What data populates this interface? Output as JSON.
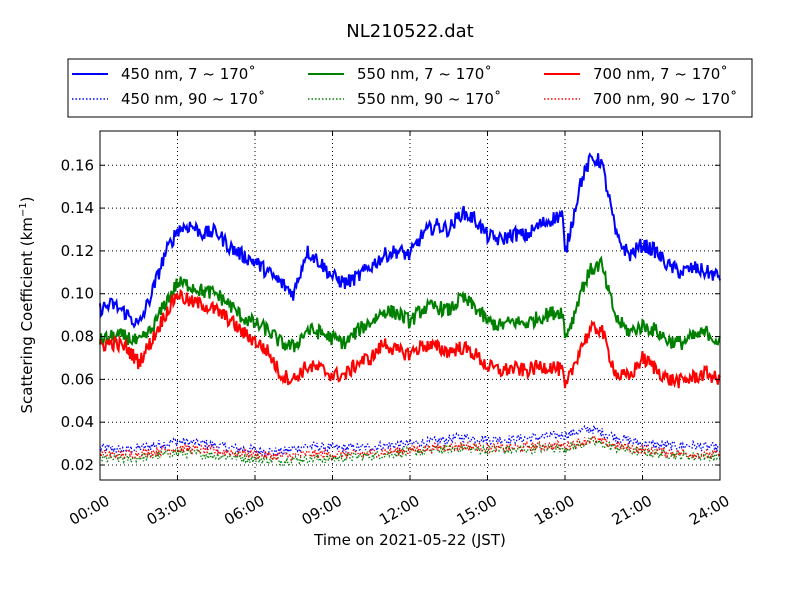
{
  "chart_data": {
    "type": "line",
    "title": "NL210522.dat",
    "xlabel": "Time on 2021-05-22 (JST)",
    "ylabel_main": "Scattering Coefficient (km",
    "ylabel_sup": "−1",
    "ylabel_close": ")",
    "xlim": [
      0,
      24
    ],
    "ylim": [
      0.013,
      0.176
    ],
    "x_ticks": [
      0,
      3,
      6,
      9,
      12,
      15,
      18,
      21,
      24
    ],
    "x_tick_labels": [
      "00:00",
      "03:00",
      "06:00",
      "09:00",
      "12:00",
      "15:00",
      "18:00",
      "21:00",
      "24:00"
    ],
    "y_ticks": [
      0.02,
      0.04,
      0.06,
      0.08,
      0.1,
      0.12,
      0.14,
      0.16
    ],
    "y_tick_labels": [
      "0.02",
      "0.04",
      "0.06",
      "0.08",
      "0.10",
      "0.12",
      "0.14",
      "0.16"
    ],
    "grid": true,
    "legend_position": "top",
    "legend_columns": 3,
    "series": [
      {
        "name": "450 nm, 7 ~ 170˚",
        "color": "#0000ff",
        "style": "solid",
        "x": [
          0,
          0.5,
          1,
          1.5,
          2,
          2.5,
          3,
          3.5,
          4,
          4.5,
          5,
          5.5,
          6,
          6.5,
          7,
          7.5,
          8,
          8.5,
          9,
          9.5,
          10,
          10.5,
          11,
          11.5,
          12,
          12.5,
          13,
          13.5,
          14,
          14.5,
          15,
          15.5,
          16,
          16.5,
          17,
          17.5,
          17.9,
          18,
          18.3,
          18.6,
          19,
          19.4,
          19.7,
          20,
          20.5,
          21,
          21.5,
          22,
          22.5,
          23,
          23.5,
          24
        ],
        "y": [
          0.093,
          0.095,
          0.091,
          0.085,
          0.1,
          0.118,
          0.13,
          0.132,
          0.128,
          0.129,
          0.122,
          0.118,
          0.115,
          0.11,
          0.105,
          0.1,
          0.12,
          0.115,
          0.108,
          0.105,
          0.108,
          0.113,
          0.118,
          0.12,
          0.118,
          0.128,
          0.132,
          0.13,
          0.138,
          0.135,
          0.127,
          0.125,
          0.128,
          0.127,
          0.132,
          0.135,
          0.137,
          0.118,
          0.135,
          0.152,
          0.163,
          0.162,
          0.145,
          0.126,
          0.118,
          0.123,
          0.12,
          0.113,
          0.11,
          0.112,
          0.11,
          0.108
        ]
      },
      {
        "name": "450 nm, 90 ~ 170˚",
        "color": "#0000ff",
        "style": "dotted",
        "x": [
          0,
          1,
          2,
          3,
          4,
          5,
          6,
          7,
          8,
          9,
          10,
          11,
          12,
          13,
          14,
          15,
          16,
          17,
          18,
          19,
          20,
          21,
          22,
          23,
          24
        ],
        "y": [
          0.028,
          0.027,
          0.029,
          0.031,
          0.03,
          0.028,
          0.027,
          0.026,
          0.029,
          0.028,
          0.028,
          0.029,
          0.03,
          0.031,
          0.033,
          0.032,
          0.032,
          0.033,
          0.034,
          0.037,
          0.033,
          0.03,
          0.029,
          0.029,
          0.028
        ]
      },
      {
        "name": "550 nm, 7 ~ 170˚",
        "color": "#008000",
        "style": "solid",
        "x": [
          0,
          0.5,
          1,
          1.5,
          2,
          2.5,
          3,
          3.5,
          4,
          4.5,
          5,
          5.5,
          6,
          6.5,
          7,
          7.5,
          8,
          8.5,
          9,
          9.5,
          10,
          10.5,
          11,
          11.5,
          12,
          12.5,
          13,
          13.5,
          14,
          14.5,
          15,
          15.5,
          16,
          16.5,
          17,
          17.5,
          17.9,
          18,
          18.3,
          18.6,
          19,
          19.4,
          19.7,
          20,
          20.5,
          21,
          21.5,
          22,
          22.5,
          23,
          23.5,
          24
        ],
        "y": [
          0.078,
          0.08,
          0.08,
          0.077,
          0.083,
          0.095,
          0.105,
          0.104,
          0.101,
          0.1,
          0.095,
          0.089,
          0.086,
          0.083,
          0.077,
          0.075,
          0.083,
          0.082,
          0.079,
          0.077,
          0.083,
          0.087,
          0.092,
          0.091,
          0.087,
          0.093,
          0.094,
          0.092,
          0.098,
          0.094,
          0.087,
          0.085,
          0.087,
          0.086,
          0.089,
          0.091,
          0.092,
          0.08,
          0.088,
          0.101,
          0.111,
          0.114,
          0.1,
          0.088,
          0.082,
          0.085,
          0.083,
          0.078,
          0.077,
          0.08,
          0.082,
          0.077
        ]
      },
      {
        "name": "550 nm, 90 ~ 170˚",
        "color": "#008000",
        "style": "dotted",
        "x": [
          0,
          1,
          2,
          3,
          4,
          5,
          6,
          7,
          8,
          9,
          10,
          11,
          12,
          13,
          14,
          15,
          16,
          17,
          18,
          19,
          20,
          21,
          22,
          23,
          24
        ],
        "y": [
          0.023,
          0.023,
          0.024,
          0.026,
          0.025,
          0.024,
          0.023,
          0.022,
          0.023,
          0.023,
          0.024,
          0.025,
          0.026,
          0.027,
          0.028,
          0.027,
          0.027,
          0.028,
          0.028,
          0.031,
          0.028,
          0.026,
          0.025,
          0.024,
          0.024
        ]
      },
      {
        "name": "700 nm, 7 ~ 170˚",
        "color": "#ff0000",
        "style": "solid",
        "x": [
          0,
          0.5,
          1,
          1.5,
          2,
          2.5,
          3,
          3.5,
          4,
          4.5,
          5,
          5.5,
          6,
          6.5,
          7,
          7.5,
          8,
          8.5,
          9,
          9.5,
          10,
          10.5,
          11,
          11.5,
          12,
          12.5,
          13,
          13.5,
          14,
          14.5,
          15,
          15.5,
          16,
          16.5,
          17,
          17.5,
          17.9,
          18,
          18.3,
          18.6,
          19,
          19.4,
          19.7,
          20,
          20.5,
          21,
          21.5,
          22,
          22.5,
          23,
          23.5,
          24
        ],
        "y": [
          0.076,
          0.077,
          0.075,
          0.068,
          0.078,
          0.09,
          0.1,
          0.096,
          0.095,
          0.092,
          0.088,
          0.082,
          0.078,
          0.073,
          0.062,
          0.06,
          0.066,
          0.065,
          0.062,
          0.062,
          0.068,
          0.07,
          0.077,
          0.073,
          0.072,
          0.076,
          0.075,
          0.073,
          0.075,
          0.072,
          0.066,
          0.064,
          0.065,
          0.064,
          0.066,
          0.066,
          0.064,
          0.055,
          0.065,
          0.075,
          0.083,
          0.084,
          0.072,
          0.062,
          0.061,
          0.07,
          0.065,
          0.06,
          0.059,
          0.061,
          0.063,
          0.059
        ]
      },
      {
        "name": "700 nm, 90 ~ 170˚",
        "color": "#ff0000",
        "style": "dotted",
        "x": [
          0,
          1,
          2,
          3,
          4,
          5,
          6,
          7,
          8,
          9,
          10,
          11,
          12,
          13,
          14,
          15,
          16,
          17,
          18,
          19,
          20,
          21,
          22,
          23,
          24
        ],
        "y": [
          0.025,
          0.025,
          0.026,
          0.028,
          0.027,
          0.026,
          0.025,
          0.024,
          0.025,
          0.025,
          0.025,
          0.026,
          0.027,
          0.028,
          0.029,
          0.028,
          0.028,
          0.029,
          0.029,
          0.032,
          0.029,
          0.027,
          0.026,
          0.025,
          0.025
        ]
      }
    ]
  }
}
